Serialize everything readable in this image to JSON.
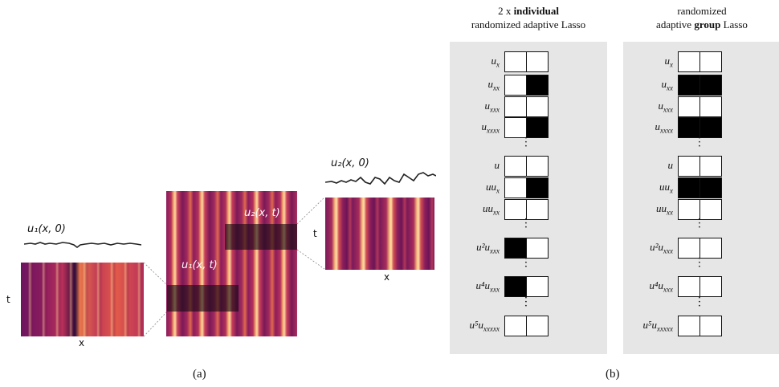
{
  "panel_a": {
    "caption": "(a)",
    "u1_curve_label": "u₁(x, 0)",
    "u2_curve_label": "u₂(x, 0)",
    "u1_region_label": "u₁(x, t)",
    "u2_region_label": "u₂(x, t)",
    "axis_t": "t",
    "axis_x": "x"
  },
  "panel_b": {
    "caption": "(b)",
    "left_title_line1_pre": "2 x ",
    "left_title_line1_bold": "individual",
    "left_title_line2": "randomized adaptive Lasso",
    "right_title_line1": "randomized",
    "right_title_line2_pre": "adaptive ",
    "right_title_line2_bold": "group",
    "right_title_line2_post": " Lasso",
    "rows": [
      {
        "label": "u_x",
        "left": [
          0,
          0
        ],
        "right": [
          0,
          0
        ]
      },
      {
        "label": "u_xx",
        "left": [
          0,
          1
        ],
        "right": [
          1,
          1
        ]
      },
      {
        "label": "u_xxx",
        "left": [
          0,
          0
        ],
        "right": [
          0,
          0
        ]
      },
      {
        "label": "u_xxxx",
        "left": [
          0,
          1
        ],
        "right": [
          1,
          1
        ]
      },
      {
        "label": "u",
        "left": [
          0,
          0
        ],
        "right": [
          0,
          0
        ]
      },
      {
        "label": "uu_x",
        "left": [
          0,
          1
        ],
        "right": [
          1,
          1
        ]
      },
      {
        "label": "uu_xx",
        "left": [
          0,
          0
        ],
        "right": [
          0,
          0
        ]
      },
      {
        "label": "u²u_xxx",
        "left": [
          1,
          0
        ],
        "right": [
          0,
          0
        ]
      },
      {
        "label": "u⁴u_xxx",
        "left": [
          1,
          0
        ],
        "right": [
          0,
          0
        ]
      },
      {
        "label": "u⁵u_xxxxx",
        "left": [
          0,
          0
        ],
        "right": [
          0,
          0
        ]
      }
    ]
  }
}
